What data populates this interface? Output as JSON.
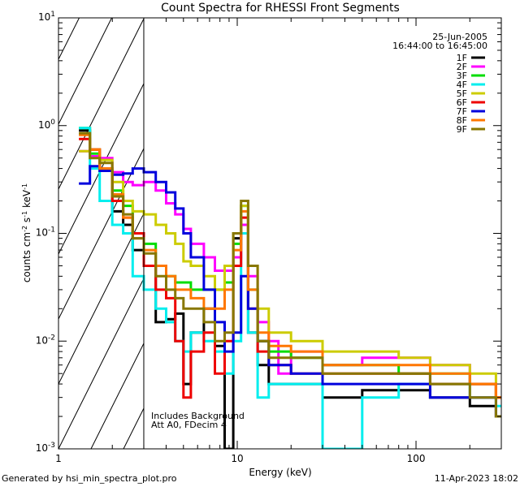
{
  "chart_data": {
    "type": "line",
    "title": "Count Spectra for RHESSI Front Segments",
    "xlabel": "Energy (keV)",
    "ylabel_parts": [
      "counts cm",
      "-2",
      " s",
      "-1",
      " keV",
      "-1"
    ],
    "xscale": "log",
    "yscale": "log",
    "xlim": [
      1,
      300
    ],
    "ylim": [
      0.001,
      10
    ],
    "x_ticks": [
      {
        "value": 1,
        "label": "1"
      },
      {
        "value": 10,
        "label": "10"
      },
      {
        "value": 100,
        "label": "100"
      }
    ],
    "y_ticks": [
      {
        "value": 0.001,
        "base": "10",
        "exp": "-3"
      },
      {
        "value": 0.01,
        "base": "10",
        "exp": "-2"
      },
      {
        "value": 0.1,
        "base": "10",
        "exp": "-1"
      },
      {
        "value": 1,
        "base": "10",
        "exp": "0"
      },
      {
        "value": 10,
        "base": "10",
        "exp": "1"
      }
    ],
    "hatched_region": {
      "x_from": 1,
      "x_to": 3
    },
    "legend": {
      "date": "25-Jun-2005",
      "time_range": "16:44:00 to 16:45:00",
      "position": "top-right"
    },
    "annotations": [
      "Includes Background",
      "Att A0, FDecim 4"
    ],
    "series": [
      {
        "name": "1F",
        "color": "#000000",
        "points": [
          [
            1.3,
            0.9
          ],
          [
            1.5,
            0.6
          ],
          [
            1.7,
            0.38
          ],
          [
            2.0,
            0.16
          ],
          [
            2.3,
            0.12
          ],
          [
            2.6,
            0.07
          ],
          [
            3.0,
            0.05
          ],
          [
            3.5,
            0.015
          ],
          [
            4.0,
            0.016
          ],
          [
            4.5,
            0.018
          ],
          [
            5.0,
            0.004
          ],
          [
            5.5,
            0.012
          ],
          [
            6.5,
            0.02
          ],
          [
            7.5,
            0.009
          ],
          [
            8.5,
            0.001
          ],
          [
            9.5,
            0.09
          ],
          [
            10.5,
            0.1
          ],
          [
            11.5,
            0.012
          ],
          [
            13,
            0.006
          ],
          [
            15,
            0.004
          ],
          [
            20,
            0.004
          ],
          [
            30,
            0.003
          ],
          [
            50,
            0.0035
          ],
          [
            80,
            0.0035
          ],
          [
            120,
            0.003
          ],
          [
            200,
            0.0025
          ],
          [
            280,
            0.002
          ]
        ]
      },
      {
        "name": "2F",
        "color": "#ff00ff",
        "points": [
          [
            1.3,
            0.58
          ],
          [
            1.5,
            0.52
          ],
          [
            1.7,
            0.5
          ],
          [
            2.0,
            0.37
          ],
          [
            2.3,
            0.3
          ],
          [
            2.6,
            0.28
          ],
          [
            3.0,
            0.3
          ],
          [
            3.5,
            0.25
          ],
          [
            4.0,
            0.19
          ],
          [
            4.5,
            0.15
          ],
          [
            5.0,
            0.11
          ],
          [
            5.5,
            0.08
          ],
          [
            6.5,
            0.06
          ],
          [
            7.5,
            0.045
          ],
          [
            8.5,
            0.045
          ],
          [
            9.5,
            0.06
          ],
          [
            10.5,
            0.12
          ],
          [
            11.5,
            0.04
          ],
          [
            13,
            0.015
          ],
          [
            15,
            0.01
          ],
          [
            17,
            0.005
          ],
          [
            20,
            0.008
          ],
          [
            30,
            0.006
          ],
          [
            50,
            0.007
          ],
          [
            80,
            0.007
          ],
          [
            120,
            0.006
          ],
          [
            200,
            0.004
          ],
          [
            280,
            0.003
          ]
        ]
      },
      {
        "name": "3F",
        "color": "#00dd00",
        "points": [
          [
            1.3,
            0.95
          ],
          [
            1.5,
            0.55
          ],
          [
            1.7,
            0.38
          ],
          [
            2.0,
            0.25
          ],
          [
            2.3,
            0.18
          ],
          [
            2.6,
            0.1
          ],
          [
            3.0,
            0.08
          ],
          [
            3.5,
            0.05
          ],
          [
            4.0,
            0.04
          ],
          [
            4.5,
            0.035
          ],
          [
            5.0,
            0.035
          ],
          [
            5.5,
            0.03
          ],
          [
            6.5,
            0.03
          ],
          [
            7.5,
            0.03
          ],
          [
            8.5,
            0.035
          ],
          [
            9.5,
            0.08
          ],
          [
            10.5,
            0.18
          ],
          [
            11.5,
            0.03
          ],
          [
            13,
            0.01
          ],
          [
            15,
            0.008
          ],
          [
            20,
            0.007
          ],
          [
            30,
            0.006
          ],
          [
            50,
            0.006
          ],
          [
            80,
            0.005
          ],
          [
            120,
            0.005
          ],
          [
            200,
            0.004
          ],
          [
            280,
            0.003
          ]
        ]
      },
      {
        "name": "4F",
        "color": "#00eeee",
        "points": [
          [
            1.3,
            0.95
          ],
          [
            1.5,
            0.4
          ],
          [
            1.7,
            0.2
          ],
          [
            2.0,
            0.12
          ],
          [
            2.3,
            0.1
          ],
          [
            2.6,
            0.04
          ],
          [
            3.0,
            0.03
          ],
          [
            3.5,
            0.02
          ],
          [
            4.0,
            0.015
          ],
          [
            4.5,
            0.01
          ],
          [
            5.0,
            0.008
          ],
          [
            5.5,
            0.012
          ],
          [
            6.5,
            0.01
          ],
          [
            7.5,
            0.008
          ],
          [
            8.5,
            0.005
          ],
          [
            9.5,
            0.01
          ],
          [
            10.5,
            0.1
          ],
          [
            11.5,
            0.012
          ],
          [
            13,
            0.003
          ],
          [
            15,
            0.004
          ],
          [
            20,
            0.004
          ],
          [
            30,
            0.001
          ],
          [
            50,
            0.003
          ],
          [
            80,
            0.004
          ],
          [
            120,
            0.004
          ],
          [
            200,
            0.003
          ],
          [
            280,
            0.0025
          ]
        ]
      },
      {
        "name": "5F",
        "color": "#cccc00",
        "points": [
          [
            1.3,
            0.58
          ],
          [
            1.5,
            0.6
          ],
          [
            1.7,
            0.48
          ],
          [
            2.0,
            0.3
          ],
          [
            2.3,
            0.2
          ],
          [
            2.6,
            0.16
          ],
          [
            3.0,
            0.15
          ],
          [
            3.5,
            0.12
          ],
          [
            4.0,
            0.1
          ],
          [
            4.5,
            0.08
          ],
          [
            5.0,
            0.055
          ],
          [
            5.5,
            0.05
          ],
          [
            6.5,
            0.04
          ],
          [
            7.5,
            0.03
          ],
          [
            8.5,
            0.05
          ],
          [
            9.5,
            0.1
          ],
          [
            10.5,
            0.18
          ],
          [
            11.5,
            0.05
          ],
          [
            13,
            0.02
          ],
          [
            15,
            0.012
          ],
          [
            20,
            0.01
          ],
          [
            30,
            0.008
          ],
          [
            50,
            0.008
          ],
          [
            80,
            0.007
          ],
          [
            120,
            0.006
          ],
          [
            200,
            0.005
          ],
          [
            280,
            0.003
          ]
        ]
      },
      {
        "name": "6F",
        "color": "#ee0000",
        "points": [
          [
            1.3,
            0.75
          ],
          [
            1.5,
            0.6
          ],
          [
            1.7,
            0.4
          ],
          [
            2.0,
            0.2
          ],
          [
            2.3,
            0.14
          ],
          [
            2.6,
            0.1
          ],
          [
            3.0,
            0.05
          ],
          [
            3.5,
            0.03
          ],
          [
            4.0,
            0.025
          ],
          [
            4.5,
            0.01
          ],
          [
            5.0,
            0.003
          ],
          [
            5.5,
            0.008
          ],
          [
            6.5,
            0.012
          ],
          [
            7.5,
            0.005
          ],
          [
            8.5,
            0.01
          ],
          [
            9.5,
            0.05
          ],
          [
            10.5,
            0.14
          ],
          [
            11.5,
            0.02
          ],
          [
            13,
            0.008
          ],
          [
            15,
            0.006
          ],
          [
            20,
            0.005
          ],
          [
            30,
            0.005
          ],
          [
            50,
            0.005
          ],
          [
            80,
            0.005
          ],
          [
            120,
            0.004
          ],
          [
            200,
            0.004
          ],
          [
            280,
            0.003
          ]
        ]
      },
      {
        "name": "7F",
        "color": "#0000dd",
        "points": [
          [
            1.3,
            0.29
          ],
          [
            1.5,
            0.42
          ],
          [
            1.7,
            0.38
          ],
          [
            2.0,
            0.35
          ],
          [
            2.3,
            0.36
          ],
          [
            2.6,
            0.4
          ],
          [
            3.0,
            0.37
          ],
          [
            3.5,
            0.3
          ],
          [
            4.0,
            0.24
          ],
          [
            4.5,
            0.17
          ],
          [
            5.0,
            0.1
          ],
          [
            5.5,
            0.06
          ],
          [
            6.5,
            0.03
          ],
          [
            7.5,
            0.015
          ],
          [
            8.5,
            0.008
          ],
          [
            9.5,
            0.012
          ],
          [
            10.5,
            0.04
          ],
          [
            11.5,
            0.02
          ],
          [
            13,
            0.01
          ],
          [
            15,
            0.006
          ],
          [
            20,
            0.005
          ],
          [
            30,
            0.004
          ],
          [
            50,
            0.004
          ],
          [
            80,
            0.004
          ],
          [
            120,
            0.003
          ],
          [
            200,
            0.003
          ],
          [
            280,
            0.002
          ]
        ]
      },
      {
        "name": "8F",
        "color": "#ff7700",
        "points": [
          [
            1.3,
            0.82
          ],
          [
            1.5,
            0.6
          ],
          [
            1.7,
            0.4
          ],
          [
            2.0,
            0.23
          ],
          [
            2.3,
            0.14
          ],
          [
            2.6,
            0.09
          ],
          [
            3.0,
            0.07
          ],
          [
            3.5,
            0.05
          ],
          [
            4.0,
            0.04
          ],
          [
            4.5,
            0.03
          ],
          [
            5.0,
            0.03
          ],
          [
            5.5,
            0.025
          ],
          [
            6.5,
            0.02
          ],
          [
            7.5,
            0.02
          ],
          [
            8.5,
            0.03
          ],
          [
            9.5,
            0.07
          ],
          [
            10.5,
            0.16
          ],
          [
            11.5,
            0.03
          ],
          [
            13,
            0.012
          ],
          [
            15,
            0.009
          ],
          [
            20,
            0.008
          ],
          [
            30,
            0.006
          ],
          [
            50,
            0.006
          ],
          [
            80,
            0.006
          ],
          [
            120,
            0.005
          ],
          [
            200,
            0.004
          ],
          [
            280,
            0.003
          ]
        ]
      },
      {
        "name": "9F",
        "color": "#887700",
        "points": [
          [
            1.3,
            0.85
          ],
          [
            1.5,
            0.5
          ],
          [
            1.7,
            0.45
          ],
          [
            2.0,
            0.22
          ],
          [
            2.3,
            0.15
          ],
          [
            2.6,
            0.09
          ],
          [
            3.0,
            0.065
          ],
          [
            3.5,
            0.04
          ],
          [
            4.0,
            0.03
          ],
          [
            4.5,
            0.025
          ],
          [
            5.0,
            0.02
          ],
          [
            5.5,
            0.02
          ],
          [
            6.5,
            0.015
          ],
          [
            7.5,
            0.01
          ],
          [
            8.5,
            0.012
          ],
          [
            9.5,
            0.1
          ],
          [
            10.5,
            0.2
          ],
          [
            11.5,
            0.05
          ],
          [
            13,
            0.01
          ],
          [
            15,
            0.007
          ],
          [
            20,
            0.007
          ],
          [
            30,
            0.005
          ],
          [
            50,
            0.005
          ],
          [
            80,
            0.005
          ],
          [
            120,
            0.004
          ],
          [
            200,
            0.003
          ],
          [
            280,
            0.002
          ]
        ]
      }
    ]
  },
  "footer": {
    "generated_by": "Generated by hsi_min_spectra_plot.pro",
    "timestamp": "11-Apr-2023 18:02"
  }
}
